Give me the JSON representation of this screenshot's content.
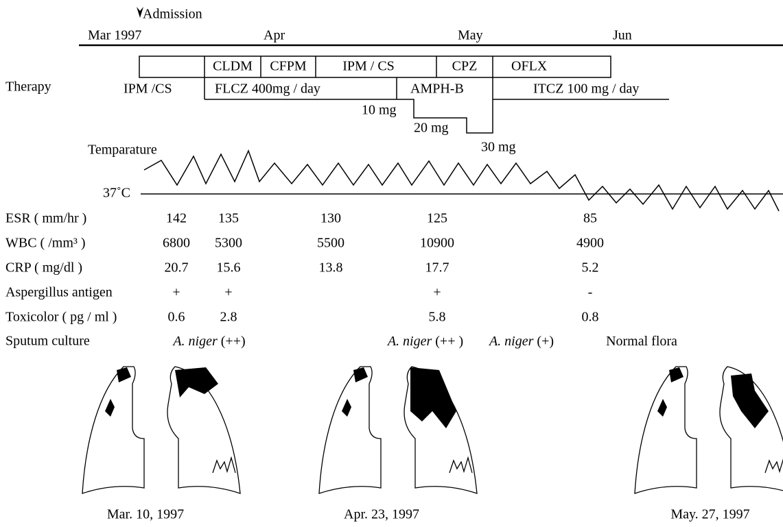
{
  "timeline": {
    "admission": "Admission",
    "months": [
      "Mar 1997",
      "Apr",
      "May",
      "Jun"
    ]
  },
  "therapy": {
    "label": "Therapy",
    "drugs": {
      "ipm_cs_first": "IPM /CS",
      "cldm": "CLDM",
      "cfpm": "CFPM",
      "ipm_cs_second": "IPM / CS",
      "cpz": "CPZ",
      "oflx": "OFLX",
      "flcz": "FLCZ 400mg / day",
      "amph_b": "AMPH-B",
      "itcz": "ITCZ 100 mg / day"
    },
    "amph_b_doses": [
      "10 mg",
      "20 mg",
      "30 mg"
    ]
  },
  "temperature": {
    "label": "Temparature",
    "baseline": "37˚C"
  },
  "labs": [
    {
      "label": "ESR ( mm/hr )",
      "values": [
        "142",
        "135",
        "130",
        "125",
        "85"
      ]
    },
    {
      "label": "WBC ( /mm³ )",
      "values": [
        "6800",
        "5300",
        "5500",
        "10900",
        "4900"
      ]
    },
    {
      "label": "CRP ( mg/dl )",
      "values": [
        "20.7",
        "15.6",
        "13.8",
        "17.7",
        "5.2"
      ]
    },
    {
      "label": "Aspergillus antigen",
      "values": [
        "+",
        "+",
        null,
        "+",
        "-"
      ]
    },
    {
      "label": "Toxicolor ( pg / ml )",
      "values": [
        "0.6",
        "2.8",
        null,
        "5.8",
        "0.8"
      ]
    }
  ],
  "sputum": {
    "label": "Sputum culture",
    "results": [
      {
        "organism": "A. niger",
        "grade": "(++)"
      },
      {
        "organism": "A. niger",
        "grade": "(++ )"
      },
      {
        "organism": "A. niger",
        "grade": "(+)"
      },
      {
        "organism": null,
        "grade": "Normal flora"
      }
    ]
  },
  "xrays": [
    "Mar. 10, 1997",
    "Apr. 23, 1997",
    "May. 27, 1997"
  ]
}
